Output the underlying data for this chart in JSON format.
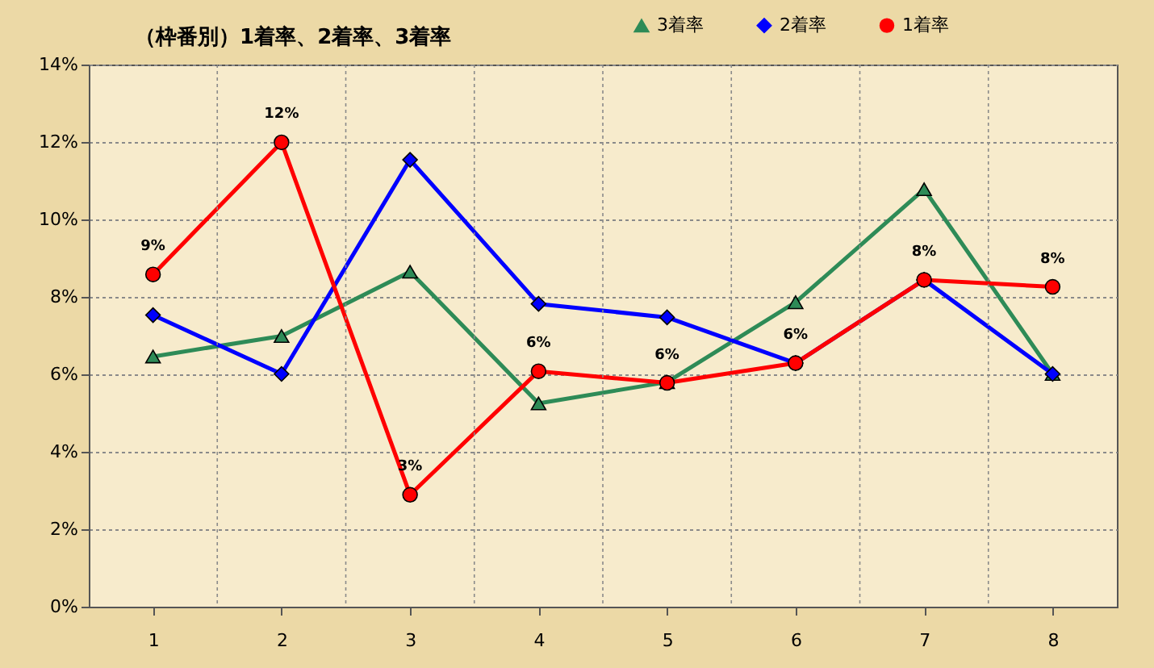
{
  "chart_data": {
    "type": "line",
    "title": "（枠番別）1着率、2着率、3着率",
    "categories": [
      "1",
      "2",
      "3",
      "4",
      "5",
      "6",
      "7",
      "8"
    ],
    "series": [
      {
        "name": "3着率",
        "color": "#2e8b57",
        "marker": "triangle",
        "values": [
          6.46,
          6.99,
          8.65,
          5.25,
          5.8,
          7.86,
          10.78,
          6.01
        ]
      },
      {
        "name": "2着率",
        "color": "#0000ff",
        "marker": "diamond",
        "values": [
          7.53,
          6.01,
          11.54,
          7.82,
          7.47,
          6.29,
          8.44,
          6.01
        ]
      },
      {
        "name": "1着率",
        "color": "#ff0000",
        "marker": "circle",
        "values": [
          8.58,
          11.99,
          2.89,
          6.08,
          5.78,
          6.29,
          8.44,
          8.26
        ],
        "value_labels": [
          "9%",
          "12%",
          "3%",
          "6%",
          "6%",
          "6%",
          "8%",
          "8%"
        ]
      }
    ],
    "ylim": [
      0,
      14
    ],
    "yticks": [
      {
        "value": 0,
        "label": "0%"
      },
      {
        "value": 2,
        "label": "2%"
      },
      {
        "value": 4,
        "label": "4%"
      },
      {
        "value": 6,
        "label": "6%"
      },
      {
        "value": 8,
        "label": "8%"
      },
      {
        "value": 10,
        "label": "10%"
      },
      {
        "value": 12,
        "label": "12%"
      },
      {
        "value": 14,
        "label": "14%"
      }
    ],
    "grid": true,
    "legend": "top right"
  }
}
